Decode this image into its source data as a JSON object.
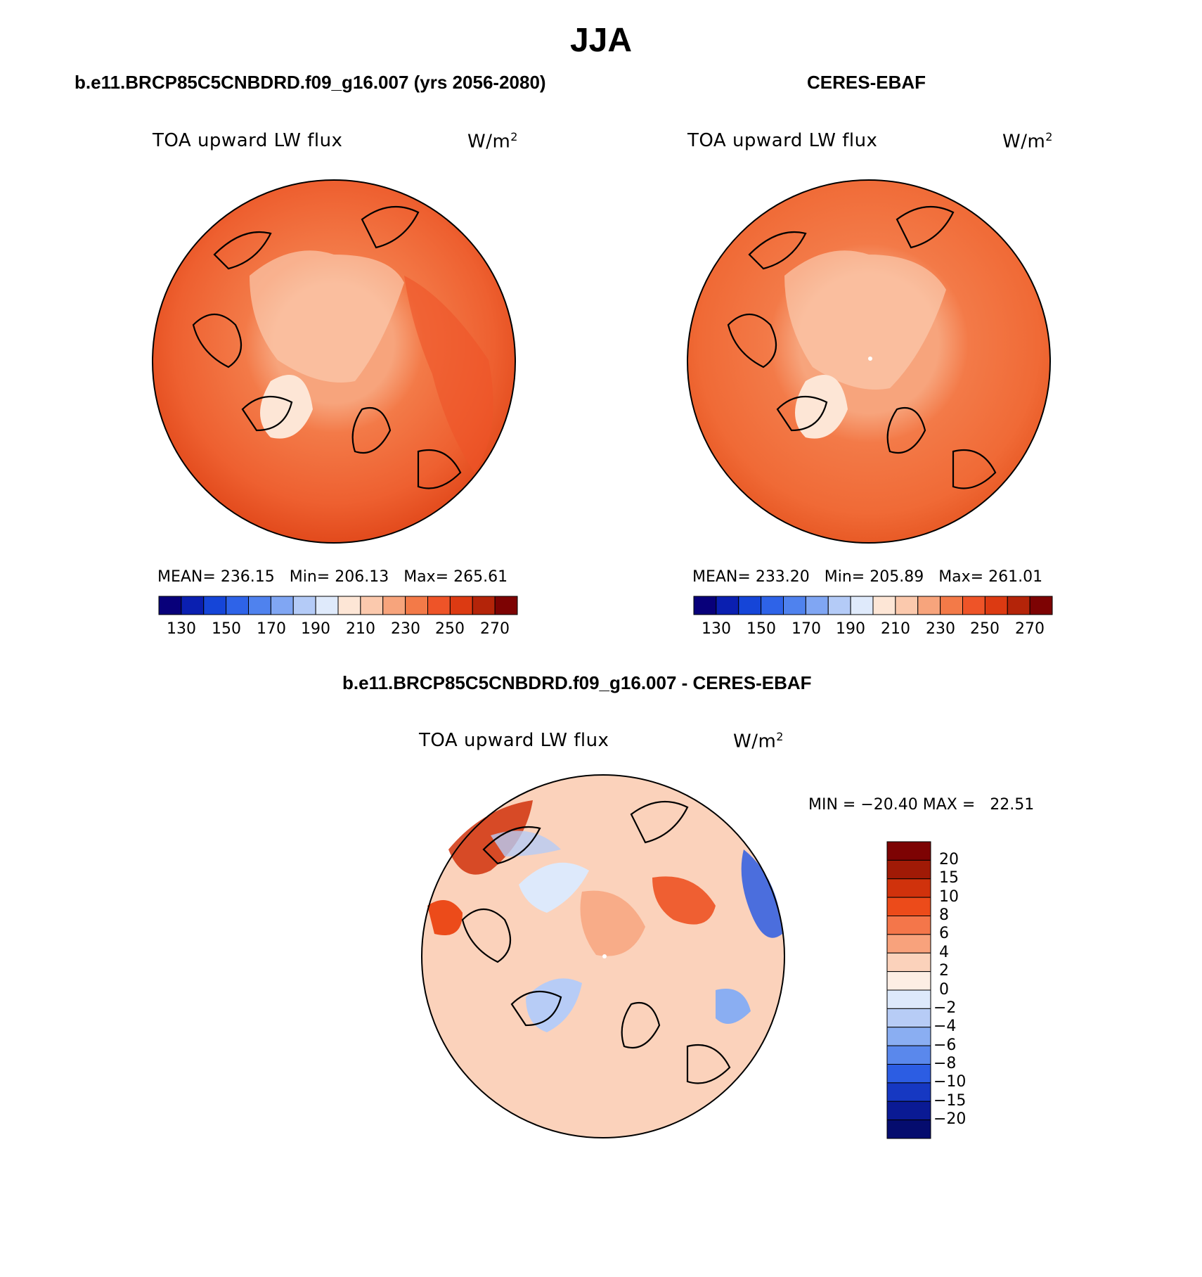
{
  "figure_title": "JJA",
  "panels": [
    {
      "title": "b.e11.BRCP85C5CNBDRD.f09_g16.007 (yrs 2056-2080)",
      "variable": "TOA upward LW flux",
      "units_base": "W/m",
      "units_exp": "2",
      "stats": "MEAN= 236.15   Min= 206.13   Max= 265.61",
      "colorbar_labels": [
        "130",
        "150",
        "170",
        "190",
        "210",
        "230",
        "250",
        "270"
      ]
    },
    {
      "title": "CERES-EBAF",
      "variable": "TOA upward LW flux",
      "units_base": "W/m",
      "units_exp": "2",
      "stats": "MEAN= 233.20   Min= 205.89   Max= 261.01",
      "colorbar_labels": [
        "130",
        "150",
        "170",
        "190",
        "210",
        "230",
        "250",
        "270"
      ]
    },
    {
      "title": "b.e11.BRCP85C5CNBDRD.f09_g16.007 - CERES-EBAF",
      "variable": "TOA upward LW flux",
      "units_base": "W/m",
      "units_exp": "2",
      "stats": "MIN = −20.40 MAX =   22.51",
      "colorbar_labels": [
        "20",
        "15",
        "10",
        "8",
        "6",
        "4",
        "2",
        "0",
        "−2",
        "−4",
        "−6",
        "−8",
        "−10",
        "−15",
        "−20"
      ]
    }
  ],
  "colors": {
    "abs_scale": [
      "#08007a",
      "#0a1fb0",
      "#1545d8",
      "#2e63e8",
      "#4f82ee",
      "#80a6f3",
      "#b4cbf7",
      "#dfeafb",
      "#fde6d6",
      "#fbc9ad",
      "#f7a47c",
      "#f37a48",
      "#ee5428",
      "#dc3a12",
      "#b42409",
      "#7d0303"
    ],
    "diff_scale": [
      "#7d0303",
      "#a01a06",
      "#d0320c",
      "#ec4b1a",
      "#f4764a",
      "#f8a27c",
      "#fbd2bb",
      "#fdeee4",
      "#dde9fb",
      "#b7ccf6",
      "#8aaef2",
      "#5a88ec",
      "#2c5de3",
      "#1638c2",
      "#0a1a94",
      "#050c6e"
    ]
  }
}
